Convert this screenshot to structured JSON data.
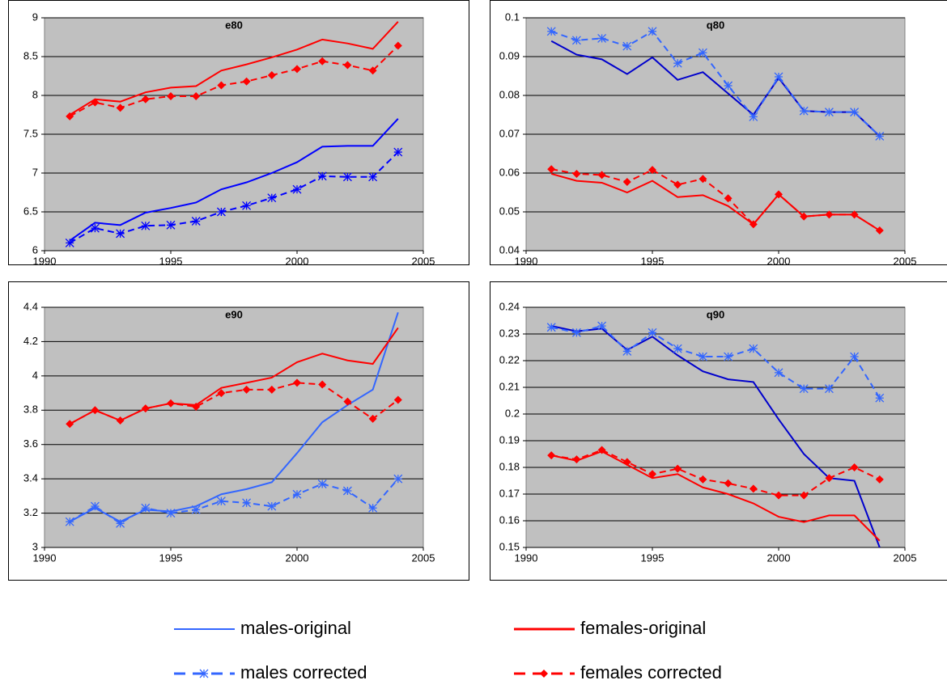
{
  "chart_data": [
    {
      "type": "line",
      "title": "e80",
      "x": [
        1991,
        1992,
        1993,
        1994,
        1995,
        1996,
        1997,
        1998,
        1999,
        2000,
        2001,
        2002,
        2003,
        2004
      ],
      "xlim": [
        1990,
        2005
      ],
      "xticks": [
        1990,
        1995,
        2000,
        2005
      ],
      "ylim": [
        6,
        9
      ],
      "yticks": [
        6,
        6.5,
        7,
        7.5,
        8,
        8.5,
        9
      ],
      "grid": true,
      "series": [
        {
          "name": "males-original",
          "color": "#0000ff",
          "dashed": false,
          "marker": null,
          "values": [
            6.13,
            6.36,
            6.33,
            6.49,
            6.55,
            6.62,
            6.79,
            6.88,
            7.0,
            7.14,
            7.34,
            7.35,
            7.35,
            7.7
          ]
        },
        {
          "name": "females-original",
          "color": "#ff0000",
          "dashed": false,
          "marker": null,
          "values": [
            7.75,
            7.95,
            7.92,
            8.04,
            8.1,
            8.12,
            8.32,
            8.4,
            8.49,
            8.59,
            8.72,
            8.67,
            8.6,
            8.95
          ]
        },
        {
          "name": "males corrected",
          "color": "#0000ff",
          "dashed": true,
          "marker": "asterisk",
          "values": [
            6.1,
            6.29,
            6.22,
            6.32,
            6.33,
            6.38,
            6.5,
            6.58,
            6.68,
            6.79,
            6.96,
            6.95,
            6.95,
            7.27
          ]
        },
        {
          "name": "females corrected",
          "color": "#ff0000",
          "dashed": true,
          "marker": "diamond",
          "values": [
            7.73,
            7.91,
            7.84,
            7.95,
            7.99,
            7.99,
            8.13,
            8.18,
            8.26,
            8.34,
            8.44,
            8.39,
            8.32,
            8.64
          ]
        }
      ]
    },
    {
      "type": "line",
      "title": "q80",
      "x": [
        1991,
        1992,
        1993,
        1994,
        1995,
        1996,
        1997,
        1998,
        1999,
        2000,
        2001,
        2002,
        2003,
        2004
      ],
      "xlim": [
        1990,
        2005
      ],
      "xticks": [
        1990,
        1995,
        2000,
        2005
      ],
      "ylim": [
        0.04,
        0.1
      ],
      "yticks": [
        0.04,
        0.05,
        0.06,
        0.07,
        0.08,
        0.09,
        0.1
      ],
      "grid": true,
      "series": [
        {
          "name": "males-original",
          "color": "#0000cc",
          "dashed": false,
          "marker": null,
          "values": [
            0.094,
            0.0905,
            0.0893,
            0.0855,
            0.0898,
            0.084,
            0.086,
            0.0805,
            0.075,
            0.0845,
            0.076,
            0.0757,
            0.0757,
            0.0695
          ]
        },
        {
          "name": "females-original",
          "color": "#ff0000",
          "dashed": false,
          "marker": null,
          "values": [
            0.0598,
            0.058,
            0.0575,
            0.055,
            0.058,
            0.0538,
            0.0543,
            0.0515,
            0.0468,
            0.0545,
            0.0488,
            0.0493,
            0.0493,
            0.0452
          ]
        },
        {
          "name": "males corrected",
          "color": "#3366ff",
          "dashed": true,
          "marker": "asterisk",
          "values": [
            0.0965,
            0.0942,
            0.0947,
            0.0927,
            0.0965,
            0.0883,
            0.091,
            0.0825,
            0.0745,
            0.0848,
            0.076,
            0.0757,
            0.0757,
            0.0695
          ]
        },
        {
          "name": "females corrected",
          "color": "#ff0000",
          "dashed": true,
          "marker": "diamond",
          "values": [
            0.061,
            0.0598,
            0.0595,
            0.0577,
            0.0608,
            0.057,
            0.0585,
            0.0535,
            0.0468,
            0.0545,
            0.0488,
            0.0493,
            0.0493,
            0.0452
          ]
        }
      ]
    },
    {
      "type": "line",
      "title": "e90",
      "x": [
        1991,
        1992,
        1993,
        1994,
        1995,
        1996,
        1997,
        1998,
        1999,
        2000,
        2001,
        2002,
        2003,
        2004
      ],
      "xlim": [
        1990,
        2005
      ],
      "xticks": [
        1990,
        1995,
        2000,
        2005
      ],
      "ylim": [
        3,
        4.4
      ],
      "yticks": [
        3,
        3.2,
        3.4,
        3.6,
        3.8,
        4,
        4.2,
        4.4
      ],
      "grid": true,
      "series": [
        {
          "name": "males-original",
          "color": "#3366ff",
          "dashed": false,
          "marker": null,
          "values": [
            3.15,
            3.23,
            3.15,
            3.22,
            3.21,
            3.24,
            3.31,
            3.34,
            3.38,
            3.55,
            3.73,
            3.83,
            3.92,
            4.37
          ]
        },
        {
          "name": "females-original",
          "color": "#ff0000",
          "dashed": false,
          "marker": null,
          "values": [
            3.72,
            3.8,
            3.74,
            3.81,
            3.84,
            3.83,
            3.93,
            3.96,
            3.99,
            4.08,
            4.13,
            4.09,
            4.07,
            4.28
          ]
        },
        {
          "name": "males corrected",
          "color": "#3366ff",
          "dashed": true,
          "marker": "asterisk",
          "values": [
            3.15,
            3.24,
            3.14,
            3.23,
            3.2,
            3.22,
            3.27,
            3.26,
            3.24,
            3.31,
            3.37,
            3.33,
            3.23,
            3.4
          ]
        },
        {
          "name": "females corrected",
          "color": "#ff0000",
          "dashed": true,
          "marker": "diamond",
          "values": [
            3.72,
            3.8,
            3.74,
            3.81,
            3.84,
            3.82,
            3.9,
            3.92,
            3.92,
            3.96,
            3.95,
            3.85,
            3.75,
            3.86
          ]
        }
      ]
    },
    {
      "type": "line",
      "title": "q90",
      "x": [
        1991,
        1992,
        1993,
        1994,
        1995,
        1996,
        1997,
        1998,
        1999,
        2000,
        2001,
        2002,
        2003,
        2004
      ],
      "xlim": [
        1990,
        2005
      ],
      "xticks": [
        1990,
        1995,
        2000,
        2005
      ],
      "ylim": [
        0.15,
        0.24
      ],
      "yticks": [
        0.15,
        0.16,
        0.17,
        0.18,
        0.19,
        0.2,
        0.21,
        0.22,
        0.23,
        0.24
      ],
      "grid": true,
      "series": [
        {
          "name": "males-original",
          "color": "#0000cc",
          "dashed": false,
          "marker": null,
          "values": [
            0.233,
            0.231,
            0.232,
            0.224,
            0.229,
            0.222,
            0.216,
            0.213,
            0.212,
            0.198,
            0.185,
            0.176,
            0.175,
            0.15
          ]
        },
        {
          "name": "females-original",
          "color": "#ff0000",
          "dashed": false,
          "marker": null,
          "values": [
            0.1845,
            0.1825,
            0.186,
            0.181,
            0.176,
            0.1775,
            0.1725,
            0.17,
            0.1665,
            0.1615,
            0.1595,
            0.162,
            0.162,
            0.1525
          ]
        },
        {
          "name": "males corrected",
          "color": "#3366ff",
          "dashed": true,
          "marker": "asterisk",
          "values": [
            0.2325,
            0.2305,
            0.233,
            0.2235,
            0.2305,
            0.2245,
            0.2215,
            0.2215,
            0.2245,
            0.2155,
            0.2095,
            0.2095,
            0.2215,
            0.206
          ]
        },
        {
          "name": "females corrected",
          "color": "#ff0000",
          "dashed": true,
          "marker": "diamond",
          "values": [
            0.1845,
            0.183,
            0.1865,
            0.182,
            0.1775,
            0.1795,
            0.1755,
            0.174,
            0.172,
            0.1695,
            0.1695,
            0.176,
            0.18,
            0.1755
          ]
        }
      ]
    }
  ]
}
